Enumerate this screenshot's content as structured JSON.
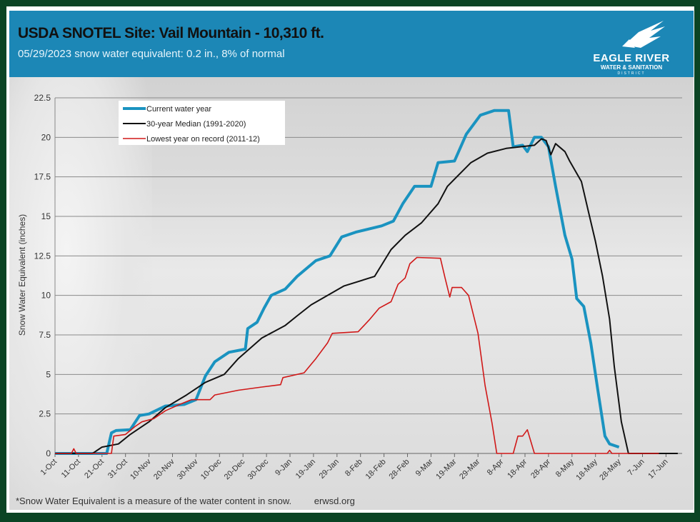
{
  "header": {
    "title": "USDA SNOTEL Site: Vail Mountain - 10,310 ft.",
    "subtitle": "05/29/2023 snow water equivalent: 0.2 in., 8% of normal",
    "logo": {
      "line1": "EAGLE RIVER",
      "line2": "WATER & SANITATION",
      "line3": "DISTRICT"
    },
    "color": "#1c87b6"
  },
  "footer": {
    "note": "*Snow Water Equivalent is a measure of the water content in snow.",
    "url": "erwsd.org"
  },
  "chart_data": {
    "type": "line",
    "title": "",
    "xlabel": "",
    "ylabel": "Snow Water Equivalent (inches)",
    "ylim": [
      0,
      22.5
    ],
    "yticks": [
      "0",
      "2.5",
      "5",
      "7.5",
      "10",
      "12.5",
      "15",
      "17.5",
      "20",
      "22.5"
    ],
    "xticks": [
      "1-Oct",
      "11-Oct",
      "21-Oct",
      "31-Oct",
      "10-Nov",
      "20-Nov",
      "30-Nov",
      "10-Dec",
      "20-Dec",
      "30-Dec",
      "9-Jan",
      "19-Jan",
      "29-Jan",
      "8-Feb",
      "18-Feb",
      "28-Feb",
      "9-Mar",
      "19-Mar",
      "29-Mar",
      "8-Apr",
      "18-Apr",
      "28-Apr",
      "8-May",
      "18-May",
      "28-May",
      "7-Jun",
      "17-Jun"
    ],
    "grid": true,
    "legend_position": "top-left",
    "series": [
      {
        "name": "Current water year",
        "color": "#1a93c0",
        "points": [
          [
            "1-Oct",
            0
          ],
          [
            "23-Oct",
            0
          ],
          [
            "25-Oct",
            1.3
          ],
          [
            "27-Oct",
            1.45
          ],
          [
            "2-Nov",
            1.5
          ],
          [
            "6-Nov",
            2.4
          ],
          [
            "10-Nov",
            2.5
          ],
          [
            "17-Nov",
            3.0
          ],
          [
            "25-Nov",
            3.1
          ],
          [
            "30-Nov",
            3.4
          ],
          [
            "4-Dec",
            4.9
          ],
          [
            "8-Dec",
            5.8
          ],
          [
            "14-Dec",
            6.4
          ],
          [
            "21-Dec",
            6.6
          ],
          [
            "22-Dec",
            7.9
          ],
          [
            "26-Dec",
            8.3
          ],
          [
            "29-Dec",
            9.2
          ],
          [
            "1-Jan",
            10.0
          ],
          [
            "7-Jan",
            10.4
          ],
          [
            "12-Jan",
            11.2
          ],
          [
            "20-Jan",
            12.2
          ],
          [
            "26-Jan",
            12.5
          ],
          [
            "31-Jan",
            13.7
          ],
          [
            "6-Feb",
            14.0
          ],
          [
            "17-Feb",
            14.4
          ],
          [
            "22-Feb",
            14.7
          ],
          [
            "26-Feb",
            15.8
          ],
          [
            "2-Mar",
            16.9
          ],
          [
            "9-Mar",
            16.9
          ],
          [
            "12-Mar",
            18.4
          ],
          [
            "19-Mar",
            18.5
          ],
          [
            "24-Mar",
            20.2
          ],
          [
            "30-Mar",
            21.4
          ],
          [
            "5-Apr",
            21.7
          ],
          [
            "11-Apr",
            21.7
          ],
          [
            "13-Apr",
            19.4
          ],
          [
            "17-Apr",
            19.5
          ],
          [
            "19-Apr",
            19.1
          ],
          [
            "22-Apr",
            20.0
          ],
          [
            "25-Apr",
            20.0
          ],
          [
            "28-Apr",
            19.4
          ],
          [
            "1-May",
            16.9
          ],
          [
            "5-May",
            13.8
          ],
          [
            "8-May",
            12.3
          ],
          [
            "10-May",
            9.8
          ],
          [
            "13-May",
            9.3
          ],
          [
            "16-May",
            7.0
          ],
          [
            "19-May",
            4.0
          ],
          [
            "22-May",
            1.1
          ],
          [
            "24-May",
            0.6
          ],
          [
            "28-May",
            0.4
          ]
        ]
      },
      {
        "name": "30-year Median (1991-2020)",
        "color": "#111111",
        "points": [
          [
            "1-Oct",
            0
          ],
          [
            "17-Oct",
            0
          ],
          [
            "21-Oct",
            0.4
          ],
          [
            "28-Oct",
            0.6
          ],
          [
            "2-Nov",
            1.2
          ],
          [
            "10-Nov",
            2.0
          ],
          [
            "17-Nov",
            2.9
          ],
          [
            "26-Nov",
            3.7
          ],
          [
            "4-Dec",
            4.5
          ],
          [
            "12-Dec",
            5.0
          ],
          [
            "18-Dec",
            6.0
          ],
          [
            "28-Dec",
            7.3
          ],
          [
            "7-Jan",
            8.1
          ],
          [
            "12-Jan",
            8.7
          ],
          [
            "18-Jan",
            9.4
          ],
          [
            "1-Feb",
            10.6
          ],
          [
            "14-Feb",
            11.2
          ],
          [
            "21-Feb",
            12.9
          ],
          [
            "27-Feb",
            13.8
          ],
          [
            "5-Mar",
            14.6
          ],
          [
            "12-Mar",
            15.8
          ],
          [
            "16-Mar",
            16.9
          ],
          [
            "26-Mar",
            18.4
          ],
          [
            "2-Apr",
            19.0
          ],
          [
            "10-Apr",
            19.3
          ],
          [
            "22-Apr",
            19.5
          ],
          [
            "25-Apr",
            19.9
          ],
          [
            "27-Apr",
            19.8
          ],
          [
            "29-Apr",
            18.9
          ],
          [
            "1-May",
            19.6
          ],
          [
            "5-May",
            19.1
          ],
          [
            "7-May",
            18.5
          ],
          [
            "12-May",
            17.2
          ],
          [
            "15-May",
            15.3
          ],
          [
            "18-May",
            13.4
          ],
          [
            "21-May",
            11.2
          ],
          [
            "24-May",
            8.5
          ],
          [
            "26-May",
            5.5
          ],
          [
            "29-May",
            2.0
          ],
          [
            "1-Jun",
            0
          ],
          [
            "22-Jun",
            0
          ]
        ]
      },
      {
        "name": "Lowest year on record (2011-12)",
        "color": "#d01818",
        "points": [
          [
            "1-Oct",
            0
          ],
          [
            "8-Oct",
            0
          ],
          [
            "9-Oct",
            0.3
          ],
          [
            "10-Oct",
            0
          ],
          [
            "25-Oct",
            0
          ],
          [
            "26-Oct",
            1.1
          ],
          [
            "31-Oct",
            1.2
          ],
          [
            "4-Nov",
            1.7
          ],
          [
            "7-Nov",
            2.0
          ],
          [
            "12-Nov",
            2.2
          ],
          [
            "17-Nov",
            2.7
          ],
          [
            "23-Nov",
            3.1
          ],
          [
            "28-Nov",
            3.4
          ],
          [
            "6-Dec",
            3.4
          ],
          [
            "8-Dec",
            3.7
          ],
          [
            "18-Dec",
            4.0
          ],
          [
            "28-Dec",
            4.2
          ],
          [
            "5-Jan",
            4.35
          ],
          [
            "6-Jan",
            4.8
          ],
          [
            "15-Jan",
            5.1
          ],
          [
            "20-Jan",
            6.0
          ],
          [
            "25-Jan",
            7.0
          ],
          [
            "27-Jan",
            7.6
          ],
          [
            "7-Feb",
            7.7
          ],
          [
            "12-Feb",
            8.5
          ],
          [
            "16-Feb",
            9.2
          ],
          [
            "21-Feb",
            9.6
          ],
          [
            "24-Feb",
            10.7
          ],
          [
            "27-Feb",
            11.1
          ],
          [
            "29-Feb",
            12.0
          ],
          [
            "3-Mar",
            12.4
          ],
          [
            "13-Mar",
            12.35
          ],
          [
            "15-Mar",
            11.1
          ],
          [
            "17-Mar",
            9.9
          ],
          [
            "18-Mar",
            10.5
          ],
          [
            "22-Mar",
            10.5
          ],
          [
            "25-Mar",
            10.0
          ],
          [
            "29-Mar",
            7.6
          ],
          [
            "1-Apr",
            4.3
          ],
          [
            "4-Apr",
            1.9
          ],
          [
            "6-Apr",
            0
          ],
          [
            "13-Apr",
            0
          ],
          [
            "15-Apr",
            1.1
          ],
          [
            "17-Apr",
            1.1
          ],
          [
            "19-Apr",
            1.5
          ],
          [
            "22-Apr",
            0
          ],
          [
            "23-May",
            0
          ],
          [
            "24-May",
            0.2
          ],
          [
            "25-May",
            0
          ],
          [
            "14-Jun",
            0
          ]
        ]
      }
    ]
  }
}
